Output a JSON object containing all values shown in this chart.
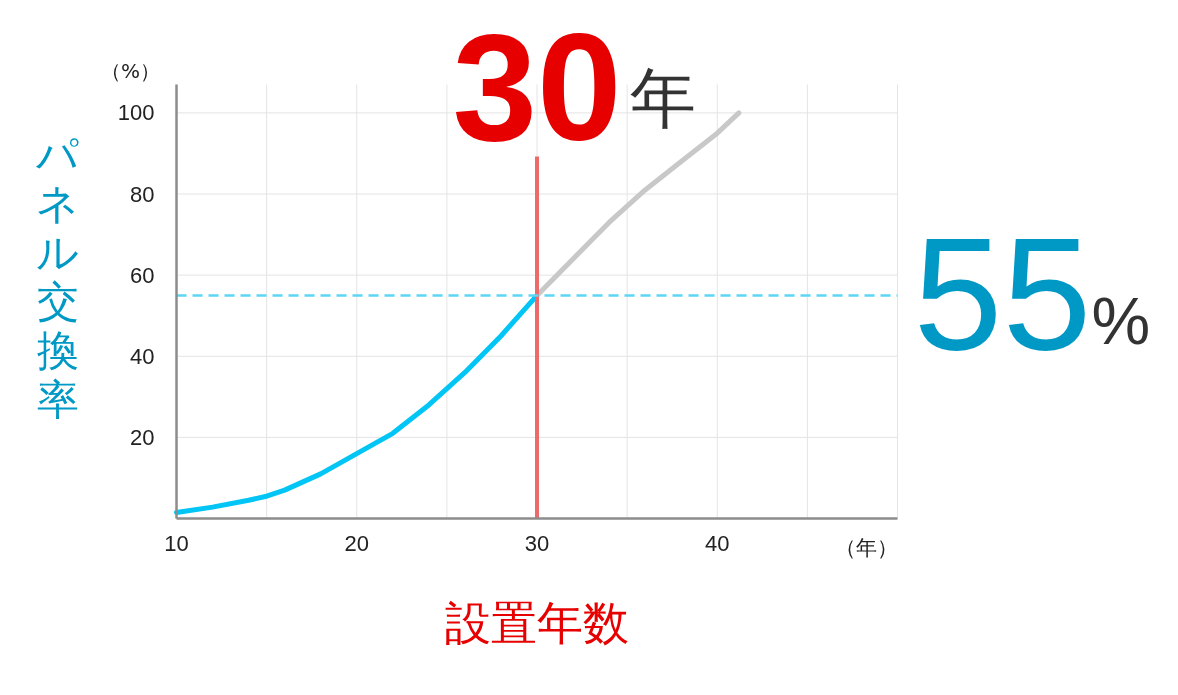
{
  "chart_data": {
    "type": "line",
    "xlabel": "設置年数",
    "ylabel": "パネル交換率",
    "annotations": [
      "（%）",
      "（年）"
    ],
    "series": [
      {
        "color": "#00c5f5",
        "x": [
          10,
          12,
          14,
          15,
          16,
          18,
          20,
          22,
          24,
          26,
          28,
          30
        ],
        "values": [
          1.5,
          2.8,
          4.5,
          5.5,
          7,
          11,
          16,
          21,
          28,
          36,
          45,
          55
        ]
      },
      {
        "color": "#c8c8c8",
        "x": [
          30,
          32,
          34,
          36,
          38,
          40,
          41.2
        ],
        "values": [
          55,
          64,
          73,
          81,
          88,
          95,
          100
        ]
      }
    ],
    "xlim": [
      10,
      50
    ],
    "ylim": [
      0,
      107
    ],
    "xticks": [
      10,
      {
        "value": 15,
        "label": null
      },
      20,
      {
        "value": 25,
        "label": null
      },
      30,
      {
        "value": 35,
        "label": null
      },
      40,
      {
        "value": 45,
        "label": null
      },
      {
        "value": 50,
        "label": null
      }
    ],
    "yticks": [
      20,
      40,
      60,
      80,
      100
    ],
    "grid": true,
    "marker": "none",
    "line_style": "solid",
    "ref_lines": [
      {
        "axis": "x",
        "value": 30,
        "label": "30年",
        "color": "#ee6a6a"
      },
      {
        "axis": "y",
        "value": 55,
        "label": "55%",
        "color": "#5cd6f5",
        "line_style": "dashed"
      }
    ]
  }
}
